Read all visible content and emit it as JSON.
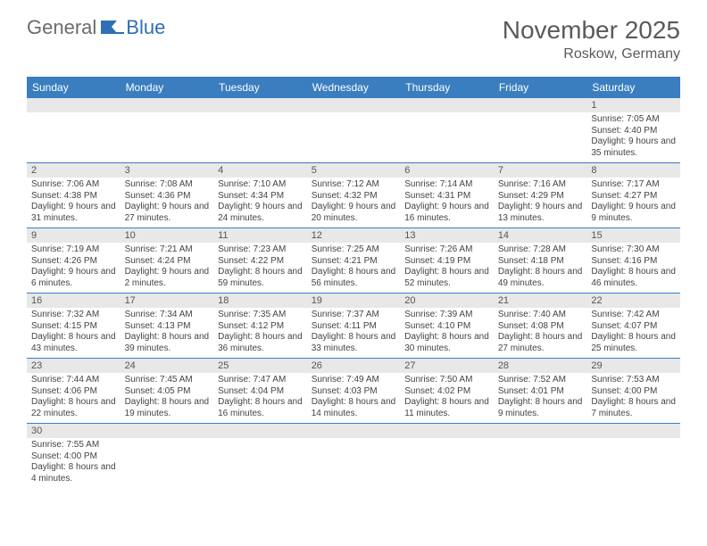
{
  "logo": {
    "part1": "General",
    "part2": "Blue"
  },
  "title": "November 2025",
  "location": "Roskow, Germany",
  "colors": {
    "header_bg": "#3a7ec0",
    "daynum_bg": "#e8e8e8",
    "divider": "#3a7ec0",
    "logo_gray": "#6b6b6b",
    "logo_blue": "#2e6fb5"
  },
  "day_headers": [
    "Sunday",
    "Monday",
    "Tuesday",
    "Wednesday",
    "Thursday",
    "Friday",
    "Saturday"
  ],
  "weeks": [
    [
      null,
      null,
      null,
      null,
      null,
      null,
      {
        "n": "1",
        "sr": "Sunrise: 7:05 AM",
        "ss": "Sunset: 4:40 PM",
        "dl": "Daylight: 9 hours and 35 minutes."
      }
    ],
    [
      {
        "n": "2",
        "sr": "Sunrise: 7:06 AM",
        "ss": "Sunset: 4:38 PM",
        "dl": "Daylight: 9 hours and 31 minutes."
      },
      {
        "n": "3",
        "sr": "Sunrise: 7:08 AM",
        "ss": "Sunset: 4:36 PM",
        "dl": "Daylight: 9 hours and 27 minutes."
      },
      {
        "n": "4",
        "sr": "Sunrise: 7:10 AM",
        "ss": "Sunset: 4:34 PM",
        "dl": "Daylight: 9 hours and 24 minutes."
      },
      {
        "n": "5",
        "sr": "Sunrise: 7:12 AM",
        "ss": "Sunset: 4:32 PM",
        "dl": "Daylight: 9 hours and 20 minutes."
      },
      {
        "n": "6",
        "sr": "Sunrise: 7:14 AM",
        "ss": "Sunset: 4:31 PM",
        "dl": "Daylight: 9 hours and 16 minutes."
      },
      {
        "n": "7",
        "sr": "Sunrise: 7:16 AM",
        "ss": "Sunset: 4:29 PM",
        "dl": "Daylight: 9 hours and 13 minutes."
      },
      {
        "n": "8",
        "sr": "Sunrise: 7:17 AM",
        "ss": "Sunset: 4:27 PM",
        "dl": "Daylight: 9 hours and 9 minutes."
      }
    ],
    [
      {
        "n": "9",
        "sr": "Sunrise: 7:19 AM",
        "ss": "Sunset: 4:26 PM",
        "dl": "Daylight: 9 hours and 6 minutes."
      },
      {
        "n": "10",
        "sr": "Sunrise: 7:21 AM",
        "ss": "Sunset: 4:24 PM",
        "dl": "Daylight: 9 hours and 2 minutes."
      },
      {
        "n": "11",
        "sr": "Sunrise: 7:23 AM",
        "ss": "Sunset: 4:22 PM",
        "dl": "Daylight: 8 hours and 59 minutes."
      },
      {
        "n": "12",
        "sr": "Sunrise: 7:25 AM",
        "ss": "Sunset: 4:21 PM",
        "dl": "Daylight: 8 hours and 56 minutes."
      },
      {
        "n": "13",
        "sr": "Sunrise: 7:26 AM",
        "ss": "Sunset: 4:19 PM",
        "dl": "Daylight: 8 hours and 52 minutes."
      },
      {
        "n": "14",
        "sr": "Sunrise: 7:28 AM",
        "ss": "Sunset: 4:18 PM",
        "dl": "Daylight: 8 hours and 49 minutes."
      },
      {
        "n": "15",
        "sr": "Sunrise: 7:30 AM",
        "ss": "Sunset: 4:16 PM",
        "dl": "Daylight: 8 hours and 46 minutes."
      }
    ],
    [
      {
        "n": "16",
        "sr": "Sunrise: 7:32 AM",
        "ss": "Sunset: 4:15 PM",
        "dl": "Daylight: 8 hours and 43 minutes."
      },
      {
        "n": "17",
        "sr": "Sunrise: 7:34 AM",
        "ss": "Sunset: 4:13 PM",
        "dl": "Daylight: 8 hours and 39 minutes."
      },
      {
        "n": "18",
        "sr": "Sunrise: 7:35 AM",
        "ss": "Sunset: 4:12 PM",
        "dl": "Daylight: 8 hours and 36 minutes."
      },
      {
        "n": "19",
        "sr": "Sunrise: 7:37 AM",
        "ss": "Sunset: 4:11 PM",
        "dl": "Daylight: 8 hours and 33 minutes."
      },
      {
        "n": "20",
        "sr": "Sunrise: 7:39 AM",
        "ss": "Sunset: 4:10 PM",
        "dl": "Daylight: 8 hours and 30 minutes."
      },
      {
        "n": "21",
        "sr": "Sunrise: 7:40 AM",
        "ss": "Sunset: 4:08 PM",
        "dl": "Daylight: 8 hours and 27 minutes."
      },
      {
        "n": "22",
        "sr": "Sunrise: 7:42 AM",
        "ss": "Sunset: 4:07 PM",
        "dl": "Daylight: 8 hours and 25 minutes."
      }
    ],
    [
      {
        "n": "23",
        "sr": "Sunrise: 7:44 AM",
        "ss": "Sunset: 4:06 PM",
        "dl": "Daylight: 8 hours and 22 minutes."
      },
      {
        "n": "24",
        "sr": "Sunrise: 7:45 AM",
        "ss": "Sunset: 4:05 PM",
        "dl": "Daylight: 8 hours and 19 minutes."
      },
      {
        "n": "25",
        "sr": "Sunrise: 7:47 AM",
        "ss": "Sunset: 4:04 PM",
        "dl": "Daylight: 8 hours and 16 minutes."
      },
      {
        "n": "26",
        "sr": "Sunrise: 7:49 AM",
        "ss": "Sunset: 4:03 PM",
        "dl": "Daylight: 8 hours and 14 minutes."
      },
      {
        "n": "27",
        "sr": "Sunrise: 7:50 AM",
        "ss": "Sunset: 4:02 PM",
        "dl": "Daylight: 8 hours and 11 minutes."
      },
      {
        "n": "28",
        "sr": "Sunrise: 7:52 AM",
        "ss": "Sunset: 4:01 PM",
        "dl": "Daylight: 8 hours and 9 minutes."
      },
      {
        "n": "29",
        "sr": "Sunrise: 7:53 AM",
        "ss": "Sunset: 4:00 PM",
        "dl": "Daylight: 8 hours and 7 minutes."
      }
    ],
    [
      {
        "n": "30",
        "sr": "Sunrise: 7:55 AM",
        "ss": "Sunset: 4:00 PM",
        "dl": "Daylight: 8 hours and 4 minutes."
      },
      null,
      null,
      null,
      null,
      null,
      null
    ]
  ]
}
